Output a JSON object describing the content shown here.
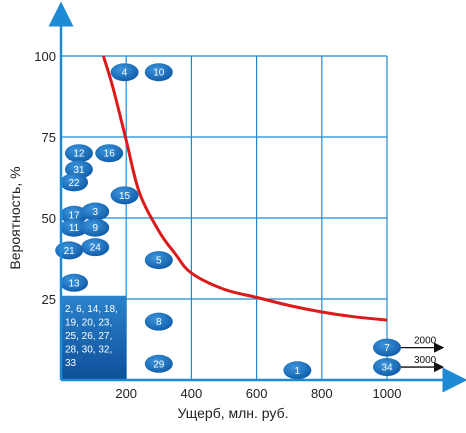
{
  "chart_data": {
    "type": "scatter",
    "xlabel": "Ущерб, млн. руб.",
    "ylabel": "Вероятность, %",
    "xlim": [
      0,
      1000
    ],
    "ylim": [
      0,
      100
    ],
    "x_ticks": [
      "200",
      "400",
      "600",
      "800",
      "1000"
    ],
    "y_ticks": [
      "25",
      "50",
      "75",
      "100"
    ],
    "x_tick_values": [
      200,
      400,
      600,
      800,
      1000
    ],
    "y_tick_values": [
      25,
      50,
      75,
      100
    ],
    "grid": true,
    "colors": {
      "point": "#1a6fbe",
      "cluster": "#1a6fbe",
      "curve": "#dd1a1a",
      "grid": "#1e8ad6",
      "axis": "#1e8ad6",
      "arrow": "#111111"
    },
    "curve_points": [
      [
        130,
        100
      ],
      [
        160,
        90
      ],
      [
        200,
        74
      ],
      [
        240,
        58
      ],
      [
        300,
        46
      ],
      [
        350,
        39
      ],
      [
        400,
        33
      ],
      [
        500,
        28
      ],
      [
        600,
        25.5
      ],
      [
        700,
        23
      ],
      [
        800,
        21
      ],
      [
        900,
        19.5
      ],
      [
        1000,
        18.5
      ]
    ],
    "points": [
      {
        "label": "4",
        "x": 195,
        "y": 95
      },
      {
        "label": "10",
        "x": 300,
        "y": 95
      },
      {
        "label": "12",
        "x": 55,
        "y": 70
      },
      {
        "label": "16",
        "x": 148,
        "y": 70
      },
      {
        "label": "31",
        "x": 55,
        "y": 65
      },
      {
        "label": "22",
        "x": 40,
        "y": 61
      },
      {
        "label": "15",
        "x": 195,
        "y": 57
      },
      {
        "label": "17",
        "x": 40,
        "y": 51
      },
      {
        "label": "3",
        "x": 105,
        "y": 52
      },
      {
        "label": "11",
        "x": 40,
        "y": 47
      },
      {
        "label": "9",
        "x": 105,
        "y": 47
      },
      {
        "label": "24",
        "x": 105,
        "y": 41
      },
      {
        "label": "21",
        "x": 25,
        "y": 40
      },
      {
        "label": "5",
        "x": 300,
        "y": 37
      },
      {
        "label": "13",
        "x": 40,
        "y": 30
      },
      {
        "label": "8",
        "x": 300,
        "y": 18
      },
      {
        "label": "29",
        "x": 300,
        "y": 5
      },
      {
        "label": "1",
        "x": 725,
        "y": 3
      },
      {
        "label": "7",
        "x": 1000,
        "y": 10
      },
      {
        "label": "34",
        "x": 1000,
        "y": 4
      }
    ],
    "cluster": {
      "x_range": [
        0,
        200
      ],
      "y_range": [
        0,
        26
      ],
      "lines": [
        "2, 6, 14, 18,",
        "19, 20, 23,",
        "25, 26, 27,",
        "28, 30,  32,",
        "33"
      ]
    },
    "offscale": [
      {
        "label": "2000",
        "point": "7"
      },
      {
        "label": "3000",
        "point": "34"
      }
    ]
  }
}
